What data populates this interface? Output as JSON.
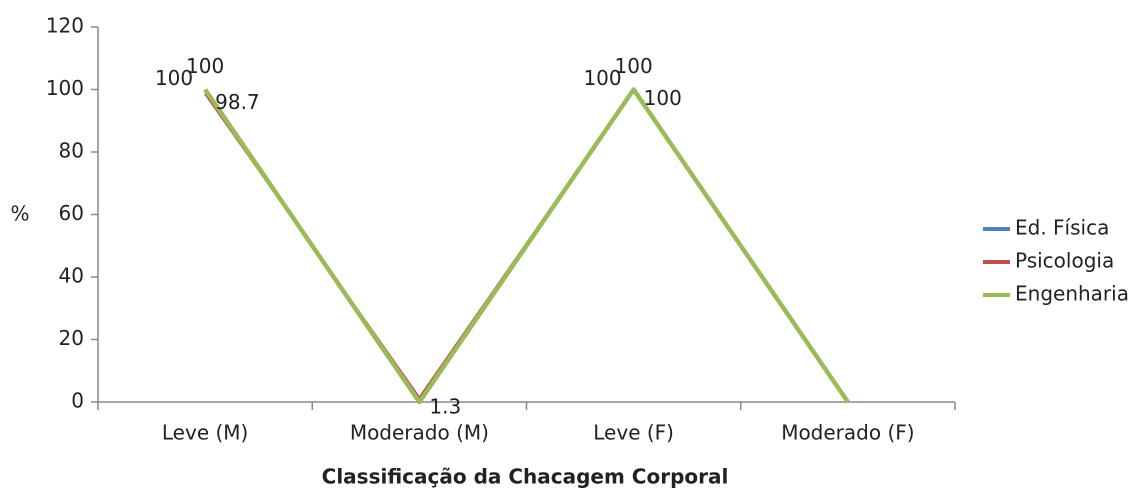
{
  "chart_data": {
    "type": "line",
    "categories": [
      "Leve (M)",
      "Moderado (M)",
      "Leve (F)",
      "Moderado (F)"
    ],
    "series": [
      {
        "name": "Ed. Física",
        "color": "#4f81bd",
        "values": [
          100,
          0,
          100,
          0
        ]
      },
      {
        "name": "Psicologia",
        "color": "#c0504d",
        "values": [
          98.7,
          1.3,
          100,
          0
        ]
      },
      {
        "name": "Engenharia",
        "color": "#9bbb59",
        "values": [
          100,
          0,
          100,
          0
        ]
      }
    ],
    "y_label": "%",
    "x_label": "Classificação da Chacagem Corporal",
    "ylim": [
      0,
      120
    ],
    "yticks": [
      0,
      20,
      40,
      60,
      80,
      100,
      120
    ],
    "legend": "right"
  }
}
